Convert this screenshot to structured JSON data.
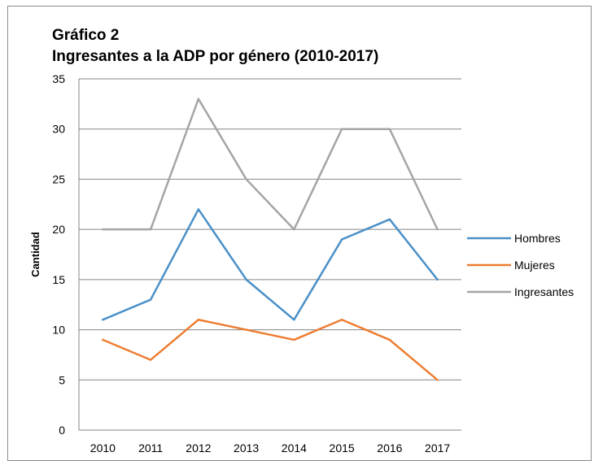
{
  "chart_data": {
    "type": "line",
    "title": "Gráfico 2",
    "subtitle": "Ingresantes a la ADP por género (2010-2017)",
    "xlabel": "",
    "ylabel": "Cantidad",
    "categories": [
      "2010",
      "2011",
      "2012",
      "2013",
      "2014",
      "2015",
      "2016",
      "2017"
    ],
    "ylim": [
      0,
      35
    ],
    "yticks": [
      0,
      5,
      10,
      15,
      20,
      25,
      30,
      35
    ],
    "grid": true,
    "legend_position": "right",
    "series": [
      {
        "name": "Hombres",
        "color": "#4a90c8",
        "values": [
          11,
          13,
          22,
          15,
          11,
          19,
          21,
          15
        ]
      },
      {
        "name": "Mujeres",
        "color": "#ed7d31",
        "values": [
          9,
          7,
          11,
          10,
          9,
          11,
          9,
          5
        ]
      },
      {
        "name": "Ingresantes",
        "color": "#a5a5a5",
        "values": [
          20,
          20,
          33,
          25,
          20,
          30,
          30,
          20
        ]
      }
    ]
  }
}
